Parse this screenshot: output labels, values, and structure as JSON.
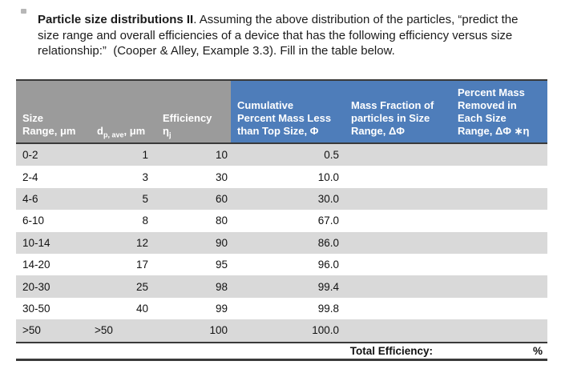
{
  "title": {
    "bold": "Particle size distributions II",
    "line1_rest": ". Assuming the above distribution of the particles, “predict the",
    "line2": "size range and overall efficiencies of a device that has the following efficiency versus size",
    "line3": "relationship:”  (Cooper & Alley, Example 3.3). Fill in the table below."
  },
  "table": {
    "header": {
      "col1_lines": [
        "Size",
        "Range, μm"
      ],
      "col2_prefix": "d",
      "col2_sub": "p, ave",
      "col2_suffix": ", μm",
      "col3_line1": "Efficiency",
      "col3_eta": "η",
      "col3_eta_sub": "j",
      "col4_lines": [
        "Cumulative",
        "Percent Mass Less",
        "than Top Size, Φ"
      ],
      "col5_lines": [
        "Mass Fraction of",
        "particles in Size",
        "Range, ΔΦ"
      ],
      "col6_lines": [
        "Percent Mass",
        "Removed in",
        "Each Size",
        "Range,  ΔΦ ∗η"
      ]
    },
    "rows": [
      {
        "size_range": "0-2",
        "dp_ave": "1",
        "efficiency": "10",
        "cumulative": "0.5",
        "mass_fraction": "",
        "removed": ""
      },
      {
        "size_range": "2-4",
        "dp_ave": "3",
        "efficiency": "30",
        "cumulative": "10.0",
        "mass_fraction": "",
        "removed": ""
      },
      {
        "size_range": "4-6",
        "dp_ave": "5",
        "efficiency": "60",
        "cumulative": "30.0",
        "mass_fraction": "",
        "removed": ""
      },
      {
        "size_range": "6-10",
        "dp_ave": "8",
        "efficiency": "80",
        "cumulative": "67.0",
        "mass_fraction": "",
        "removed": ""
      },
      {
        "size_range": "10-14",
        "dp_ave": "12",
        "efficiency": "90",
        "cumulative": "86.0",
        "mass_fraction": "",
        "removed": ""
      },
      {
        "size_range": "14-20",
        "dp_ave": "17",
        "efficiency": "95",
        "cumulative": "96.0",
        "mass_fraction": "",
        "removed": ""
      },
      {
        "size_range": "20-30",
        "dp_ave": "25",
        "efficiency": "98",
        "cumulative": "99.4",
        "mass_fraction": "",
        "removed": ""
      },
      {
        "size_range": "30-50",
        "dp_ave": "40",
        "efficiency": "99",
        "cumulative": "99.8",
        "mass_fraction": "",
        "removed": ""
      },
      {
        "size_range": ">50",
        "dp_ave": ">50",
        "efficiency": "100",
        "cumulative": "100.0",
        "mass_fraction": "",
        "removed": ""
      }
    ],
    "footer": {
      "label": "Total Efficiency:",
      "unit": "%"
    }
  },
  "colors": {
    "header_gray": "#9b9b9b",
    "header_blue": "#4e7dba",
    "row_shade": "#d9d9d9",
    "border_dark": "#3a3a3a"
  }
}
